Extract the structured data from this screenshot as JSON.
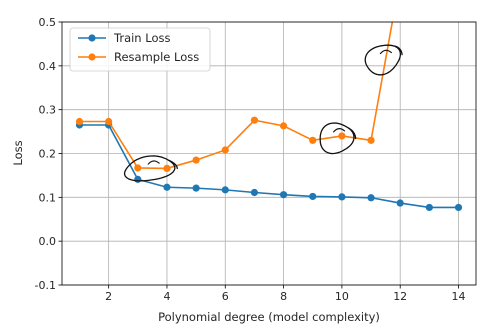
{
  "chart_data": {
    "type": "line",
    "title": "",
    "xlabel": "Polynomial degree (model complexity)",
    "ylabel": "Loss",
    "xlim": [
      0.4,
      14.6
    ],
    "ylim": [
      -0.1,
      0.5
    ],
    "xticks": [
      2,
      4,
      6,
      8,
      10,
      12,
      14
    ],
    "yticks": [
      -0.1,
      0.0,
      0.1,
      0.2,
      0.3,
      0.4,
      0.5
    ],
    "grid": true,
    "legend_position": "top-left",
    "series": [
      {
        "name": "Train Loss",
        "color": "#1f77b4",
        "x": [
          1,
          2,
          3,
          4,
          5,
          6,
          7,
          8,
          9,
          10,
          11,
          12,
          13,
          14
        ],
        "y": [
          0.265,
          0.265,
          0.141,
          0.123,
          0.121,
          0.117,
          0.111,
          0.106,
          0.102,
          0.101,
          0.099,
          0.087,
          0.077,
          0.077
        ]
      },
      {
        "name": "Resample Loss",
        "color": "#ff7f0e",
        "x": [
          1,
          2,
          3,
          4,
          5,
          6,
          7,
          8,
          9,
          10,
          11,
          12
        ],
        "y": [
          0.273,
          0.273,
          0.167,
          0.166,
          0.185,
          0.208,
          0.276,
          0.263,
          0.23,
          0.24,
          0.23,
          0.6
        ]
      }
    ],
    "annotations": [
      {
        "type": "hand-drawn-circle",
        "x": 3.4,
        "y": 0.165
      },
      {
        "type": "hand-drawn-circle",
        "x": 9.8,
        "y": 0.235
      },
      {
        "type": "hand-drawn-circle",
        "x": 11.4,
        "y": 0.415
      }
    ]
  }
}
